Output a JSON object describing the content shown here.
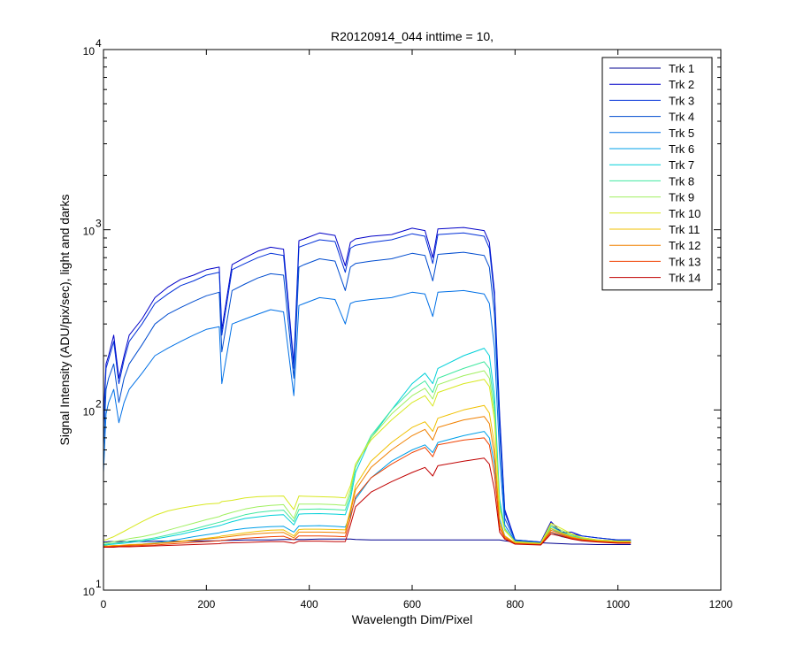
{
  "chart_data": {
    "type": "line",
    "title": "R20120914_044 inttime = 10,",
    "xlabel": "Wavelength Dim/Pixel",
    "ylabel": "Signal Intensity (ADU/pix/sec), light and darks",
    "xlim": [
      0,
      1200
    ],
    "ylim": [
      10,
      10000
    ],
    "yscale": "log",
    "x_ticks": [
      "0",
      "200",
      "400",
      "600",
      "800",
      "1000",
      "1200"
    ],
    "y_ticks": [
      {
        "base": "10",
        "exp": "1",
        "value": 10
      },
      {
        "base": "10",
        "exp": "2",
        "value": 100
      },
      {
        "base": "10",
        "exp": "3",
        "value": 1000
      },
      {
        "base": "10",
        "exp": "4",
        "value": 10000
      }
    ],
    "grid": false,
    "legend_position": "top-right",
    "x": [
      0,
      5,
      10,
      20,
      30,
      40,
      50,
      75,
      100,
      125,
      150,
      175,
      200,
      225,
      230,
      250,
      275,
      300,
      325,
      350,
      370,
      380,
      390,
      420,
      450,
      470,
      480,
      490,
      520,
      560,
      600,
      625,
      640,
      650,
      700,
      740,
      750,
      760,
      770,
      780,
      800,
      850,
      870,
      890,
      910,
      930,
      960,
      1000,
      1025
    ],
    "series": [
      {
        "name": "Trk 1",
        "color": "#00008f",
        "values": [
          18.5,
          18.5,
          18.6,
          18.6,
          18.6,
          18.6,
          18.6,
          18.6,
          18.7,
          18.7,
          18.7,
          18.7,
          18.8,
          18.8,
          18.9,
          18.9,
          19.0,
          19.0,
          19.0,
          19.1,
          19.1,
          19.1,
          19.1,
          19.2,
          19.2,
          19.2,
          19.2,
          19.1,
          19.0,
          19.0,
          19.0,
          19.0,
          19.0,
          19.0,
          19.0,
          19.0,
          19.0,
          19.0,
          19.0,
          18.8,
          18.5,
          18.3,
          18.2,
          18.1,
          18.0,
          18.0,
          17.9,
          17.9,
          17.9
        ]
      },
      {
        "name": "Trk 2",
        "color": "#0000c8",
        "values": [
          90,
          180,
          200,
          260,
          150,
          200,
          260,
          320,
          420,
          480,
          530,
          560,
          600,
          620,
          280,
          640,
          700,
          760,
          800,
          780,
          180,
          870,
          890,
          960,
          930,
          630,
          850,
          890,
          920,
          940,
          1020,
          990,
          700,
          1010,
          1030,
          990,
          850,
          450,
          95,
          28,
          19,
          18.5,
          24,
          21,
          21,
          20,
          19.5,
          19,
          19
        ]
      },
      {
        "name": "Trk 3",
        "color": "#0030d8",
        "values": [
          80,
          170,
          190,
          240,
          140,
          190,
          240,
          300,
          390,
          440,
          490,
          520,
          560,
          580,
          260,
          600,
          650,
          700,
          740,
          720,
          170,
          800,
          820,
          880,
          860,
          580,
          790,
          820,
          850,
          880,
          950,
          920,
          650,
          940,
          960,
          920,
          790,
          420,
          90,
          27,
          19,
          18.5,
          23,
          21,
          20.5,
          20,
          19.5,
          19,
          19
        ]
      },
      {
        "name": "Trk 4",
        "color": "#004ccf",
        "values": [
          60,
          130,
          150,
          180,
          110,
          150,
          180,
          230,
          300,
          340,
          370,
          400,
          430,
          450,
          210,
          460,
          500,
          540,
          570,
          560,
          150,
          620,
          640,
          690,
          670,
          460,
          620,
          650,
          670,
          690,
          740,
          720,
          520,
          730,
          750,
          720,
          620,
          340,
          75,
          25,
          19,
          18.4,
          22,
          20.5,
          20,
          19.5,
          19,
          18.8,
          18.8
        ]
      },
      {
        "name": "Trk 5",
        "color": "#0070e6",
        "values": [
          45,
          95,
          110,
          130,
          85,
          110,
          130,
          160,
          200,
          220,
          240,
          260,
          280,
          290,
          140,
          300,
          320,
          340,
          360,
          350,
          120,
          380,
          390,
          420,
          410,
          300,
          390,
          400,
          410,
          420,
          450,
          440,
          330,
          450,
          460,
          440,
          390,
          220,
          55,
          23,
          18.8,
          18.3,
          21,
          20,
          19.5,
          19,
          18.8,
          18.7,
          18.7
        ]
      },
      {
        "name": "Trk 6",
        "color": "#00a0e8",
        "values": [
          17.5,
          17.5,
          17.5,
          17.6,
          17.6,
          17.7,
          17.8,
          18.0,
          18.3,
          18.7,
          19.2,
          19.8,
          20.3,
          20.8,
          21.0,
          21.5,
          22.0,
          22.3,
          22.5,
          22.6,
          21.0,
          22.7,
          22.7,
          22.8,
          22.6,
          22.4,
          26.0,
          32,
          42,
          52,
          60,
          64,
          58,
          66,
          72,
          76,
          70,
          50,
          25,
          20,
          18.2,
          18.0,
          21,
          19.8,
          19.3,
          18.9,
          18.6,
          18.4,
          18.4
        ]
      },
      {
        "name": "Trk 7",
        "color": "#00d0d8",
        "values": [
          17.8,
          17.8,
          17.9,
          18.0,
          18.1,
          18.2,
          18.4,
          18.7,
          19.2,
          19.8,
          20.4,
          21.2,
          22.0,
          22.8,
          23.0,
          24.0,
          25.0,
          25.5,
          26.0,
          26.2,
          23.0,
          26.4,
          26.5,
          26.6,
          26.4,
          26.2,
          32,
          45,
          70,
          100,
          140,
          160,
          140,
          170,
          200,
          220,
          200,
          120,
          32,
          22,
          18.5,
          18.1,
          22,
          20.5,
          19.8,
          19.2,
          18.8,
          18.5,
          18.5
        ]
      },
      {
        "name": "Trk 8",
        "color": "#40e8a0",
        "values": [
          18.0,
          18.0,
          18.1,
          18.2,
          18.3,
          18.5,
          18.7,
          19.0,
          19.5,
          20.2,
          21.0,
          21.8,
          22.8,
          23.8,
          24.0,
          25.0,
          26.2,
          27.0,
          27.5,
          27.8,
          24.0,
          28.0,
          28.1,
          28.2,
          28.0,
          27.8,
          34,
          48,
          72,
          100,
          130,
          145,
          125,
          150,
          170,
          185,
          170,
          105,
          30,
          22,
          18.5,
          18.1,
          22.5,
          21,
          20,
          19.3,
          18.9,
          18.6,
          18.6
        ]
      },
      {
        "name": "Trk 9",
        "color": "#a0f060",
        "values": [
          18.3,
          18.3,
          18.4,
          18.6,
          18.8,
          19.0,
          19.3,
          19.8,
          20.5,
          21.5,
          22.5,
          23.5,
          24.6,
          25.6,
          26.0,
          27.0,
          28.2,
          29.0,
          29.5,
          29.8,
          25.0,
          30.0,
          30.0,
          30.0,
          29.8,
          29.5,
          36,
          50,
          70,
          95,
          120,
          132,
          115,
          138,
          155,
          165,
          150,
          95,
          29,
          21.5,
          18.5,
          18.1,
          23,
          21.5,
          20.3,
          19.5,
          19.0,
          18.7,
          18.7
        ]
      },
      {
        "name": "Trk 10",
        "color": "#d8e820",
        "values": [
          19.0,
          19.0,
          19.3,
          19.8,
          20.5,
          21.2,
          22.0,
          24.0,
          26.0,
          27.5,
          28.5,
          29.3,
          30.0,
          30.4,
          31.0,
          31.5,
          32.5,
          33.0,
          33.2,
          33.3,
          28.0,
          33.3,
          33.2,
          33.0,
          32.8,
          32.5,
          38,
          50,
          68,
          88,
          110,
          120,
          105,
          125,
          140,
          148,
          135,
          88,
          28,
          21.5,
          18.6,
          18.2,
          23.5,
          22,
          20.5,
          19.6,
          19.0,
          18.7,
          18.7
        ]
      },
      {
        "name": "Trk 11",
        "color": "#f0c000",
        "values": [
          17.6,
          17.6,
          17.6,
          17.7,
          17.7,
          17.8,
          17.9,
          18.0,
          18.2,
          18.4,
          18.7,
          19.0,
          19.4,
          19.8,
          20.0,
          20.3,
          20.8,
          21.2,
          21.5,
          21.6,
          20.0,
          21.7,
          21.8,
          21.8,
          21.7,
          21.6,
          28,
          38,
          52,
          66,
          80,
          86,
          76,
          90,
          100,
          106,
          96,
          64,
          24,
          20,
          18.3,
          18.0,
          22,
          20.8,
          19.8,
          19.2,
          18.8,
          18.5,
          18.5
        ]
      },
      {
        "name": "Trk 12",
        "color": "#f08000",
        "values": [
          17.5,
          17.5,
          17.5,
          17.6,
          17.6,
          17.7,
          17.8,
          17.9,
          18.1,
          18.3,
          18.6,
          18.9,
          19.2,
          19.5,
          19.6,
          19.9,
          20.3,
          20.6,
          20.8,
          20.9,
          19.5,
          21.0,
          21.0,
          21.0,
          20.9,
          20.8,
          27,
          36,
          48,
          60,
          72,
          78,
          68,
          80,
          88,
          92,
          84,
          56,
          23,
          19.8,
          18.2,
          17.9,
          21.5,
          20.5,
          19.6,
          19.1,
          18.7,
          18.4,
          18.4
        ]
      },
      {
        "name": "Trk 13",
        "color": "#f04000",
        "values": [
          17.4,
          17.4,
          17.4,
          17.5,
          17.5,
          17.6,
          17.6,
          17.7,
          17.8,
          18.0,
          18.2,
          18.4,
          18.6,
          18.8,
          18.9,
          19.1,
          19.4,
          19.6,
          19.8,
          19.9,
          19.0,
          20.0,
          20.0,
          20.0,
          19.9,
          19.8,
          25,
          33,
          42,
          50,
          58,
          62,
          55,
          64,
          68,
          70,
          64,
          44,
          22,
          19.5,
          18.1,
          17.9,
          21,
          20.2,
          19.4,
          19.0,
          18.6,
          18.3,
          18.3
        ]
      },
      {
        "name": "Trk 14",
        "color": "#c00000",
        "values": [
          17.3,
          17.3,
          17.3,
          17.3,
          17.4,
          17.4,
          17.4,
          17.5,
          17.6,
          17.7,
          17.8,
          17.9,
          18.0,
          18.1,
          18.2,
          18.3,
          18.4,
          18.5,
          18.6,
          18.6,
          18.2,
          18.7,
          18.7,
          18.7,
          18.6,
          18.6,
          23,
          29,
          35,
          40,
          45,
          48,
          43,
          49,
          52,
          54,
          50,
          36,
          21,
          19.2,
          18.0,
          17.8,
          20.5,
          19.9,
          19.2,
          18.8,
          18.5,
          18.2,
          18.2
        ]
      }
    ]
  }
}
